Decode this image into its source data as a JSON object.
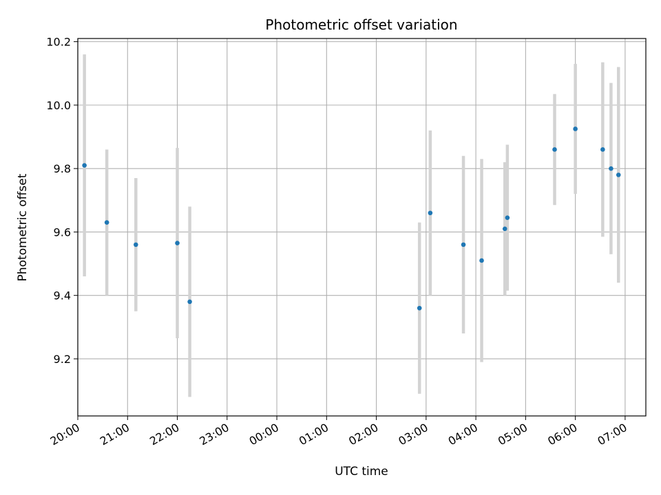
{
  "chart_data": {
    "type": "scatter",
    "title": "Photometric offset variation",
    "xlabel": "UTC time",
    "ylabel": "Photometric offset",
    "grid": true,
    "xlim": [
      "19:60",
      "07:25"
    ],
    "ylim": [
      9.02,
      10.21
    ],
    "x_ticks": [
      "20:00",
      "21:00",
      "22:00",
      "23:00",
      "00:00",
      "01:00",
      "02:00",
      "03:00",
      "04:00",
      "05:00",
      "06:00",
      "07:00"
    ],
    "y_ticks": [
      9.2,
      9.4,
      9.6,
      9.8,
      10.0,
      10.2
    ],
    "colors": {
      "marker": "#1f77b4",
      "errorbar": "#d3d3d3",
      "grid": "#b0b0b0"
    },
    "points": [
      {
        "time": "20:08",
        "y": 9.81,
        "err": 0.35
      },
      {
        "time": "20:35",
        "y": 9.63,
        "err": 0.23
      },
      {
        "time": "21:10",
        "y": 9.56,
        "err": 0.21
      },
      {
        "time": "22:00",
        "y": 9.565,
        "err": 0.3
      },
      {
        "time": "22:15",
        "y": 9.38,
        "err": 0.3
      },
      {
        "time": "02:52",
        "y": 9.36,
        "err": 0.27
      },
      {
        "time": "03:05",
        "y": 9.66,
        "err": 0.26
      },
      {
        "time": "03:45",
        "y": 9.56,
        "err": 0.28
      },
      {
        "time": "04:07",
        "y": 9.51,
        "err": 0.32
      },
      {
        "time": "04:35",
        "y": 9.61,
        "err": 0.21
      },
      {
        "time": "04:38",
        "y": 9.645,
        "err": 0.23
      },
      {
        "time": "05:35",
        "y": 9.86,
        "err": 0.175
      },
      {
        "time": "06:00",
        "y": 9.925,
        "err": 0.205
      },
      {
        "time": "06:33",
        "y": 9.86,
        "err": 0.275
      },
      {
        "time": "06:43",
        "y": 9.8,
        "err": 0.27
      },
      {
        "time": "06:52",
        "y": 9.78,
        "err": 0.34
      }
    ]
  }
}
